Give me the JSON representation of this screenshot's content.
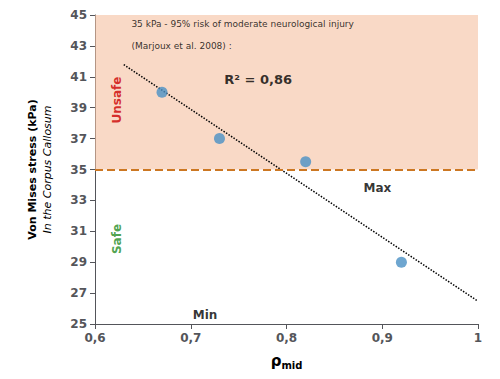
{
  "chart_data": {
    "type": "scatter",
    "x": [
      0.67,
      0.73,
      0.82,
      0.92
    ],
    "values": [
      40.0,
      37.0,
      35.5,
      29.0
    ],
    "color": "#4A90C4",
    "xlim": [
      0.6,
      1.0
    ],
    "ylim": [
      25,
      45
    ],
    "xticks": [
      {
        "value": 0.6,
        "label": "0,6"
      },
      {
        "value": 0.7,
        "label": "0,7"
      },
      {
        "value": 0.8,
        "label": "0,8"
      },
      {
        "value": 0.9,
        "label": "0,9"
      },
      1
    ],
    "yticks": [
      25,
      27,
      29,
      31,
      33,
      35,
      37,
      39,
      41,
      43,
      45
    ],
    "xlabel": "ρmid",
    "ylabel": [
      "Von Mises stress (kPa)",
      "In the Corpus Callosum"
    ],
    "grid": false,
    "threshold": {
      "value": 35.0,
      "color": "#CC7722",
      "line_style": "dashed",
      "shade_color": "#F5C0A0"
    },
    "trend_line": {
      "x": [
        0.63,
        1.0
      ],
      "values": [
        41.7899,
        26.4769
      ],
      "color": "#000000",
      "line_style": "dotted"
    },
    "annotations": [
      {
        "text": "R² = 0,86"
      },
      {
        "text": "Unsafe",
        "color": "#CC0000"
      },
      {
        "text": "Safe",
        "color": "#228B22"
      },
      {
        "text": "Max"
      },
      {
        "text": "Min"
      },
      {
        "text": "35 kPa - 95% risk of moderate neurological injury"
      },
      {
        "text": "(Marjoux et al. 2008) :"
      }
    ]
  }
}
